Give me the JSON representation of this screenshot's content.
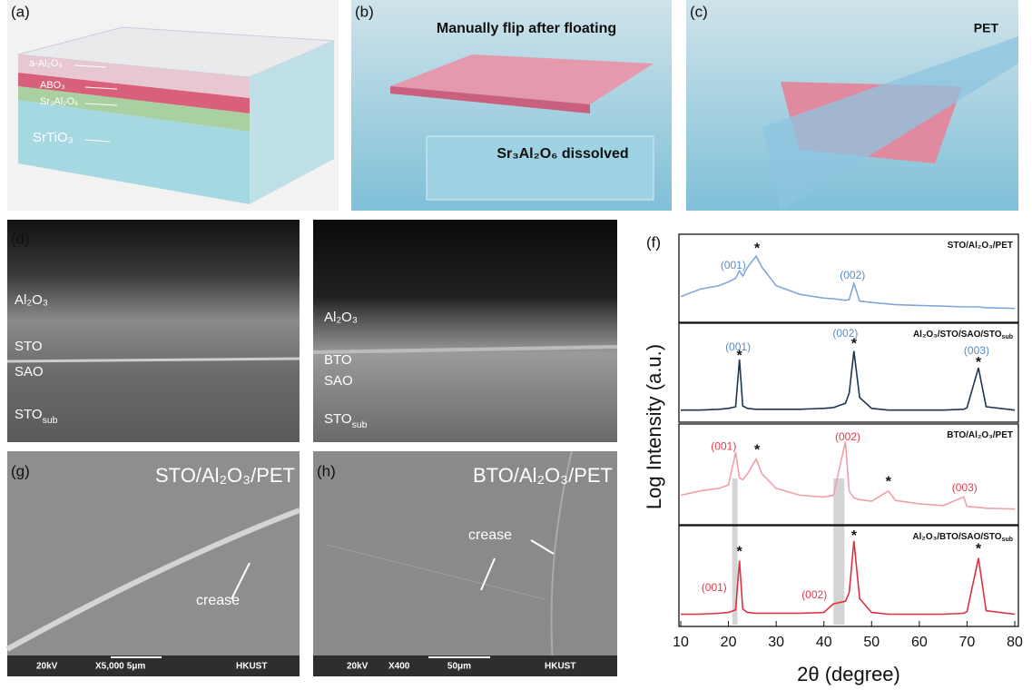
{
  "panels": {
    "a": {
      "label": "(a)",
      "layers": [
        "a-Al₂O₃",
        "ABO₃",
        "Sr₃Al₂O₆",
        "SrTiO₃"
      ]
    },
    "b": {
      "label": "(b)",
      "caption_top": "Manually flip after floating",
      "caption_bottom": "Sr₃Al₂O₆ dissolved"
    },
    "c": {
      "label": "(c)",
      "caption": "PET"
    },
    "d": {
      "label": "(d)",
      "layers": [
        {
          "text": "Al₂O₃"
        },
        {
          "text": "STO"
        },
        {
          "text": "SAO"
        },
        {
          "text": "STO",
          "sub": "sub"
        }
      ]
    },
    "e": {
      "label": "(e)",
      "layers": [
        {
          "text": "Al₂O₃"
        },
        {
          "text": "BTO"
        },
        {
          "text": "SAO"
        },
        {
          "text": "STO",
          "sub": "sub"
        }
      ]
    },
    "f": {
      "label": "(f)"
    },
    "g": {
      "label": "(g)",
      "caption": "STO/Al₂O₃/PET",
      "note": "crease",
      "scale": [
        "20kV",
        "X5,000",
        "5μm",
        "HKUST"
      ]
    },
    "h": {
      "label": "(h)",
      "caption": "BTO/Al₂O₃/PET",
      "note": "crease",
      "scale": [
        "20kV",
        "X400",
        "50μm",
        "HKUST"
      ]
    }
  },
  "chart_data": {
    "type": "line",
    "xlabel": "2θ (degree)",
    "ylabel": "Log Intensity (a.u.)",
    "xlim": [
      10,
      80
    ],
    "xticks": [
      10,
      20,
      30,
      40,
      50,
      60,
      70,
      80
    ],
    "ylim": [
      0,
      1
    ],
    "x": [
      10,
      14,
      18,
      20,
      21.5,
      22.3,
      23,
      24,
      25.8,
      27,
      30,
      35,
      40,
      42,
      44.5,
      45.3,
      46.3,
      47.5,
      50,
      53.5,
      55,
      60,
      65,
      69.3,
      70,
      72.4,
      74,
      80
    ],
    "series": [
      {
        "name": "STO/Al₂O₃/PET",
        "color": "#7fa8d8",
        "values": [
          0.3,
          0.4,
          0.45,
          0.5,
          0.55,
          0.65,
          0.58,
          0.7,
          0.85,
          0.7,
          0.45,
          0.33,
          0.28,
          0.27,
          0.25,
          0.26,
          0.48,
          0.24,
          0.22,
          0.2,
          0.19,
          0.18,
          0.17,
          0.16,
          0.16,
          0.16,
          0.15,
          0.14
        ],
        "annotations": [
          {
            "text": "(001)",
            "color": "#5b8cc0"
          },
          {
            "text": "*",
            "color": "#111"
          },
          {
            "text": "(002)",
            "color": "#5b8cc0"
          }
        ]
      },
      {
        "name": "Al₂O₃/STO/SAO/STO",
        "name_sub": "sub",
        "color": "#1f3550",
        "values": [
          0.1,
          0.1,
          0.11,
          0.12,
          0.14,
          0.7,
          0.15,
          0.12,
          0.11,
          0.11,
          0.11,
          0.11,
          0.12,
          0.13,
          0.18,
          0.3,
          0.8,
          0.25,
          0.12,
          0.1,
          0.1,
          0.1,
          0.1,
          0.11,
          0.13,
          0.6,
          0.14,
          0.1
        ],
        "annotations": [
          {
            "text": "(001)",
            "color": "#5b8cc0"
          },
          {
            "text": "*",
            "color": "#111"
          },
          {
            "text": "(002)",
            "color": "#5b8cc0"
          },
          {
            "text": "*",
            "color": "#111"
          },
          {
            "text": "(003)",
            "color": "#5b8cc0"
          },
          {
            "text": "*",
            "color": "#111"
          }
        ]
      },
      {
        "name": "BTO/Al₂O₃/PET",
        "color": "#f0a0a8",
        "values": [
          0.3,
          0.35,
          0.38,
          0.42,
          0.8,
          0.5,
          0.48,
          0.55,
          0.72,
          0.55,
          0.38,
          0.3,
          0.28,
          0.3,
          0.92,
          0.35,
          0.27,
          0.25,
          0.23,
          0.35,
          0.24,
          0.2,
          0.18,
          0.28,
          0.17,
          0.16,
          0.15,
          0.14
        ],
        "annotations": [
          {
            "text": "(001)",
            "color": "#e03a4a"
          },
          {
            "text": "*",
            "color": "#111"
          },
          {
            "text": "(002)",
            "color": "#e03a4a"
          },
          {
            "text": "*",
            "color": "#111"
          },
          {
            "text": "(003)",
            "color": "#e03a4a"
          }
        ]
      },
      {
        "name": "Al₂O₃/BTO/SAO/STO",
        "name_sub": "sub",
        "color": "#e03040",
        "values": [
          0.1,
          0.1,
          0.11,
          0.12,
          0.15,
          0.72,
          0.16,
          0.12,
          0.11,
          0.11,
          0.11,
          0.11,
          0.12,
          0.22,
          0.25,
          0.35,
          0.95,
          0.28,
          0.12,
          0.1,
          0.1,
          0.1,
          0.1,
          0.11,
          0.13,
          0.75,
          0.14,
          0.1
        ],
        "annotations": [
          {
            "text": "(001)",
            "color": "#e03a4a"
          },
          {
            "text": "*",
            "color": "#111"
          },
          {
            "text": "(002)",
            "color": "#e03a4a"
          },
          {
            "text": "*",
            "color": "#111"
          },
          {
            "text": "*",
            "color": "#111"
          }
        ]
      }
    ]
  }
}
